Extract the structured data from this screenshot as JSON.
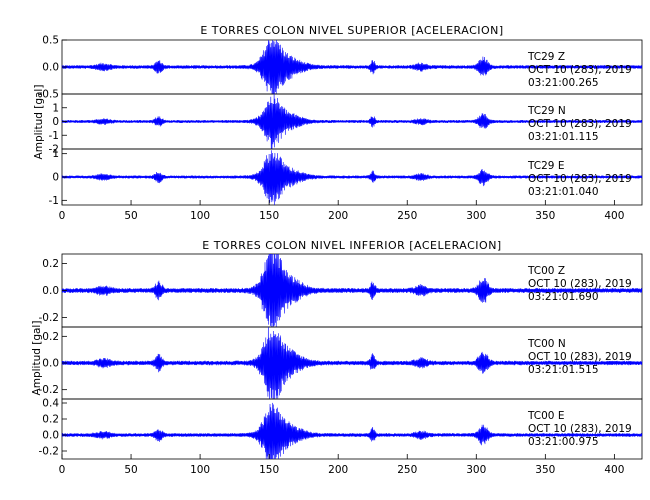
{
  "trace_color": "#0000ff",
  "panels": [
    {
      "title": "E TORRES COLON NIVEL SUPERIOR [ACELERACION]",
      "ylabel": "Amplitud [gal]"
    },
    {
      "title": "E TORRES COLON NIVEL INFERIOR [ACELERACION]",
      "ylabel": "Amplitud [gal]"
    }
  ],
  "chart_data": [
    {
      "type": "line",
      "title": "E TORRES COLON NIVEL SUPERIOR [ACELERACION]",
      "ylabel": "Amplitud [gal]",
      "xlim": [
        0,
        420
      ],
      "xticks": [
        "0",
        "50",
        "100",
        "150",
        "200",
        "250",
        "300",
        "350",
        "400"
      ],
      "traces": [
        {
          "station": "TC29",
          "component": "Z",
          "date": "OCT 10 (283), 2019",
          "time": "03:21:00.265",
          "ylim": [
            -0.5,
            0.5
          ],
          "yticks": [
            "0.5",
            "0.0",
            "-0.5"
          ],
          "peak": 0.48
        },
        {
          "station": "TC29",
          "component": "N",
          "date": "OCT 10 (283), 2019",
          "time": "03:21:01.115",
          "ylim": [
            -2,
            2
          ],
          "yticks": [
            "1",
            "0",
            "-1",
            "-2"
          ],
          "peak": 1.5
        },
        {
          "station": "TC29",
          "component": "E",
          "date": "OCT 10 (283), 2019",
          "time": "03:21:01.040",
          "ylim": [
            -1.2,
            1.2
          ],
          "yticks": [
            "1",
            "0",
            "-1"
          ],
          "peak": 0.95
        }
      ]
    },
    {
      "type": "line",
      "title": "E TORRES COLON NIVEL INFERIOR [ACELERACION]",
      "ylabel": "Amplitud [gal]",
      "xlim": [
        0,
        420
      ],
      "xticks": [
        "0",
        "50",
        "100",
        "150",
        "200",
        "250",
        "300",
        "350",
        "400"
      ],
      "traces": [
        {
          "station": "TC00",
          "component": "Z",
          "date": "OCT 10 (283), 2019",
          "time": "03:21:01.690",
          "ylim": [
            -0.27,
            0.27
          ],
          "yticks": [
            "0.2",
            "0.0",
            "-0.2"
          ],
          "peak": 0.26
        },
        {
          "station": "TC00",
          "component": "N",
          "date": "OCT 10 (283), 2019",
          "time": "03:21:01.515",
          "ylim": [
            -0.27,
            0.27
          ],
          "yticks": [
            "0.2",
            "0.0",
            "-0.2"
          ],
          "peak": 0.24
        },
        {
          "station": "TC00",
          "component": "E",
          "date": "OCT 10 (283), 2019",
          "time": "03:21:00.975",
          "ylim": [
            -0.3,
            0.45
          ],
          "yticks": [
            "0.4",
            "0.2",
            "0.0",
            "-0.2"
          ],
          "peak": 0.33
        }
      ]
    }
  ]
}
